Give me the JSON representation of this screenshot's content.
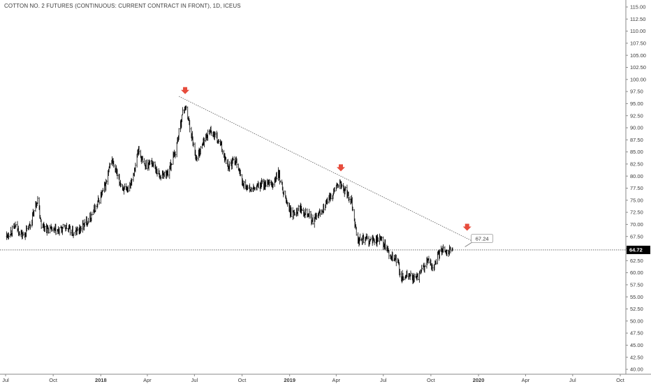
{
  "header": {
    "title": "COTTON NO. 2 FUTURES (CONTINUOUS: CURRENT CONTRACT IN FRONT), 1D, ICEUS"
  },
  "chart_data": {
    "type": "ohlc",
    "title": "COTTON NO. 2 FUTURES (CONTINUOUS: CURRENT CONTRACT IN FRONT), 1D, ICEUS",
    "xlabel": "",
    "ylabel": "",
    "x_ticks": [
      "Jul",
      "Oct",
      "2018",
      "Apr",
      "Jul",
      "Oct",
      "2019",
      "Apr",
      "Jul",
      "Oct",
      "2020",
      "Apr",
      "Jul",
      "Oct"
    ],
    "x_tick_dates": [
      "2017-07-01",
      "2017-10-01",
      "2018-01-01",
      "2018-04-01",
      "2018-07-01",
      "2018-10-01",
      "2019-01-01",
      "2019-04-01",
      "2019-07-01",
      "2019-10-01",
      "2020-01-01",
      "2020-04-01",
      "2020-07-01",
      "2020-10-01"
    ],
    "x_range": [
      "2017-07-01",
      "2020-10-01"
    ],
    "ylim": [
      38.5,
      116.5
    ],
    "y_ticks": [
      "115.00",
      "112.50",
      "110.00",
      "107.50",
      "105.00",
      "102.50",
      "100.00",
      "97.50",
      "95.00",
      "92.50",
      "90.00",
      "87.50",
      "85.00",
      "82.50",
      "80.00",
      "77.50",
      "75.00",
      "72.50",
      "70.00",
      "67.50",
      "65.00",
      "62.50",
      "60.00",
      "57.50",
      "55.00",
      "52.50",
      "50.00",
      "47.50",
      "45.00",
      "42.50",
      "40.00"
    ],
    "last_price": "64.72",
    "last_price_value": 64.72,
    "bar_color": "#000000",
    "price_path": [
      [
        "2017-07-01",
        67.5
      ],
      [
        "2017-07-20",
        69.5
      ],
      [
        "2017-08-05",
        67.5
      ],
      [
        "2017-08-18",
        70.0
      ],
      [
        "2017-09-01",
        75.5
      ],
      [
        "2017-09-08",
        70.0
      ],
      [
        "2017-09-20",
        69.0
      ],
      [
        "2017-10-10",
        68.5
      ],
      [
        "2017-10-25",
        69.5
      ],
      [
        "2017-11-10",
        68.0
      ],
      [
        "2017-12-01",
        70.0
      ],
      [
        "2017-12-20",
        73.0
      ],
      [
        "2018-01-10",
        78.0
      ],
      [
        "2018-01-22",
        83.5
      ],
      [
        "2018-02-05",
        79.0
      ],
      [
        "2018-02-20",
        76.5
      ],
      [
        "2018-03-05",
        80.5
      ],
      [
        "2018-03-15",
        85.5
      ],
      [
        "2018-03-25",
        82.0
      ],
      [
        "2018-04-10",
        83.0
      ],
      [
        "2018-04-25",
        80.0
      ],
      [
        "2018-05-10",
        80.5
      ],
      [
        "2018-05-25",
        85.0
      ],
      [
        "2018-06-08",
        93.0
      ],
      [
        "2018-06-13",
        94.5
      ],
      [
        "2018-06-20",
        91.5
      ],
      [
        "2018-06-28",
        87.0
      ],
      [
        "2018-07-05",
        83.5
      ],
      [
        "2018-07-18",
        87.0
      ],
      [
        "2018-08-01",
        89.5
      ],
      [
        "2018-08-20",
        86.5
      ],
      [
        "2018-09-05",
        82.0
      ],
      [
        "2018-09-20",
        83.5
      ],
      [
        "2018-10-01",
        78.5
      ],
      [
        "2018-10-20",
        77.0
      ],
      [
        "2018-11-10",
        78.5
      ],
      [
        "2018-11-28",
        78.0
      ],
      [
        "2018-12-10",
        80.5
      ],
      [
        "2018-12-25",
        75.0
      ],
      [
        "2019-01-05",
        72.0
      ],
      [
        "2019-01-20",
        73.5
      ],
      [
        "2019-02-05",
        72.5
      ],
      [
        "2019-02-15",
        70.5
      ],
      [
        "2019-03-01",
        72.5
      ],
      [
        "2019-03-20",
        75.5
      ],
      [
        "2019-04-05",
        78.5
      ],
      [
        "2019-04-18",
        77.0
      ],
      [
        "2019-05-01",
        75.0
      ],
      [
        "2019-05-12",
        66.5
      ],
      [
        "2019-05-25",
        67.0
      ],
      [
        "2019-06-10",
        66.5
      ],
      [
        "2019-06-25",
        67.0
      ],
      [
        "2019-07-05",
        65.5
      ],
      [
        "2019-07-15",
        63.0
      ],
      [
        "2019-07-28",
        62.5
      ],
      [
        "2019-08-05",
        59.0
      ],
      [
        "2019-08-20",
        59.5
      ],
      [
        "2019-09-01",
        58.5
      ],
      [
        "2019-09-15",
        60.5
      ],
      [
        "2019-09-25",
        62.5
      ],
      [
        "2019-10-05",
        61.0
      ],
      [
        "2019-10-15",
        63.5
      ],
      [
        "2019-10-25",
        65.0
      ],
      [
        "2019-11-05",
        64.5
      ],
      [
        "2019-11-12",
        64.7
      ]
    ],
    "annotations": [
      {
        "type": "trendline",
        "from": [
          "2018-06-01",
          96.5
        ],
        "to": [
          "2019-12-25",
          66.3
        ],
        "color": "#555555",
        "style": "dotted"
      },
      {
        "type": "horizontal_line",
        "value": 64.72,
        "color": "#555555",
        "style": "dotted"
      },
      {
        "type": "arrow_down",
        "at": [
          "2018-06-13",
          97.7
        ],
        "color": "#e74c3c"
      },
      {
        "type": "arrow_down",
        "at": [
          "2019-04-10",
          81.7
        ],
        "color": "#e74c3c"
      },
      {
        "type": "arrow_down",
        "at": [
          "2019-12-10",
          69.4
        ],
        "color": "#e74c3c"
      },
      {
        "type": "price_label",
        "text": "67.24",
        "at": [
          "2019-12-18",
          67.24
        ]
      }
    ]
  }
}
